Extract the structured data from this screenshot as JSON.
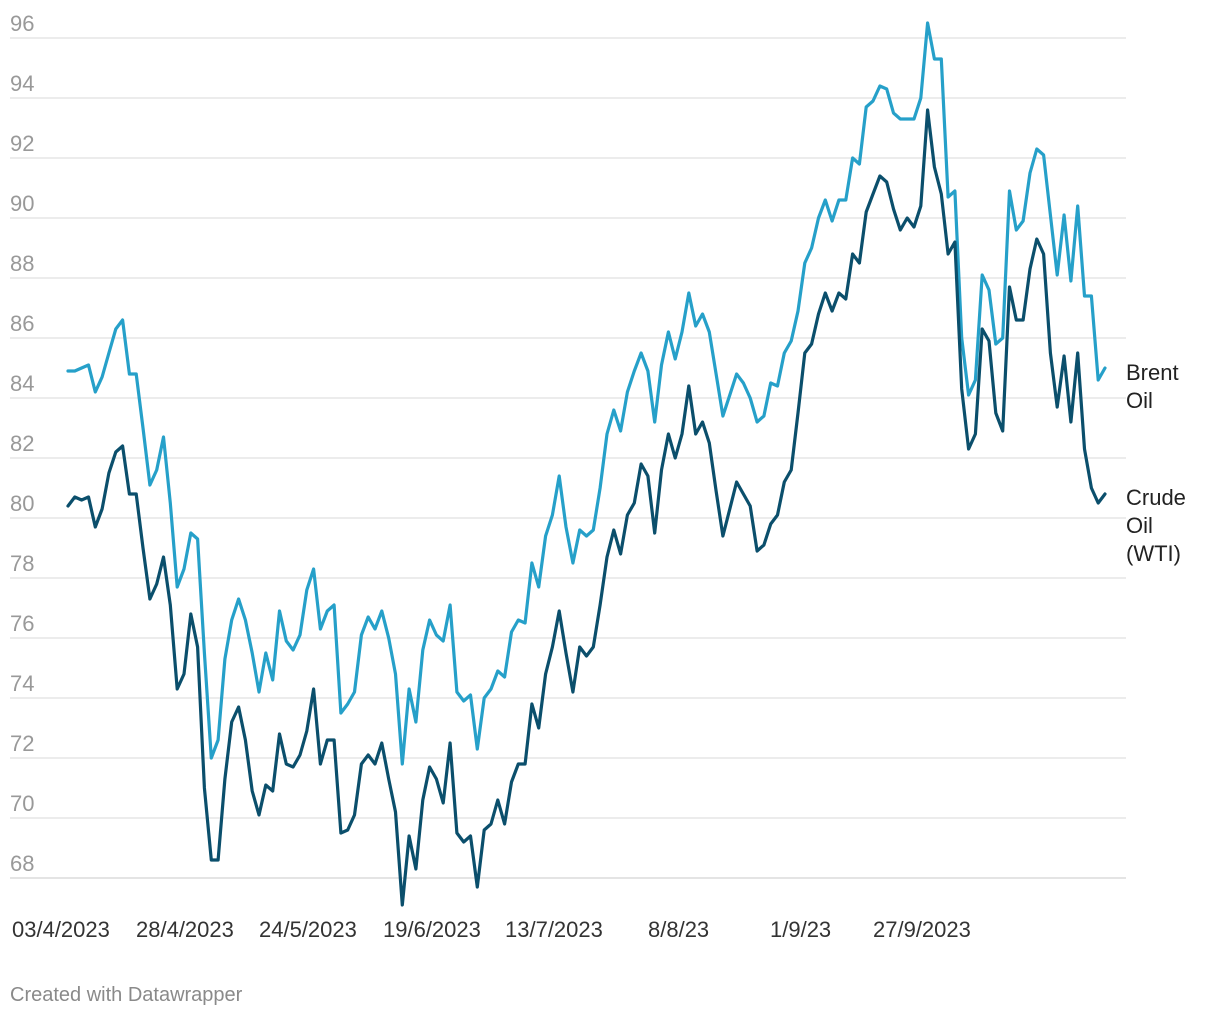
{
  "chart_data": {
    "type": "line",
    "x_tick_labels": [
      "03/4/2023",
      "28/4/2023",
      "24/5/2023",
      "19/6/2023",
      "13/7/2023",
      "8/8/23",
      "1/9/23",
      "27/9/2023"
    ],
    "ylim": [
      67,
      96.5
    ],
    "y_ticks": [
      68,
      70,
      72,
      74,
      76,
      78,
      80,
      82,
      84,
      86,
      88,
      90,
      92,
      94,
      96
    ],
    "grid": true,
    "series": [
      {
        "name": "Brent Oil",
        "label_lines": [
          "Brent",
          "Oil"
        ],
        "color": "#26a0c9",
        "values": [
          84.9,
          84.9,
          85.0,
          85.1,
          84.2,
          84.7,
          85.5,
          86.3,
          86.6,
          84.8,
          84.8,
          83.0,
          81.1,
          81.6,
          82.7,
          80.5,
          77.7,
          78.3,
          79.5,
          79.3,
          75.5,
          72.0,
          72.6,
          75.3,
          76.6,
          77.3,
          76.6,
          75.5,
          74.2,
          75.5,
          74.6,
          76.9,
          75.9,
          75.6,
          76.1,
          77.6,
          78.3,
          76.3,
          76.9,
          77.1,
          73.5,
          73.8,
          74.2,
          76.1,
          76.7,
          76.3,
          76.9,
          76.0,
          74.8,
          71.8,
          74.3,
          73.2,
          75.6,
          76.6,
          76.1,
          75.9,
          77.1,
          74.2,
          73.9,
          74.1,
          72.3,
          74.0,
          74.3,
          74.9,
          74.7,
          76.2,
          76.6,
          76.5,
          78.5,
          77.7,
          79.4,
          80.1,
          81.4,
          79.7,
          78.5,
          79.6,
          79.4,
          79.6,
          81.0,
          82.8,
          83.6,
          82.9,
          84.2,
          84.9,
          85.5,
          84.9,
          83.2,
          85.1,
          86.2,
          85.3,
          86.2,
          87.5,
          86.4,
          86.8,
          86.2,
          84.8,
          83.4,
          84.1,
          84.8,
          84.5,
          84.0,
          83.2,
          83.4,
          84.5,
          84.4,
          85.5,
          85.9,
          86.9,
          88.5,
          89.0,
          90.0,
          90.6,
          89.9,
          90.6,
          90.6,
          92.0,
          91.8,
          93.7,
          93.9,
          94.4,
          94.3,
          93.5,
          93.3,
          93.3,
          93.3,
          94.0,
          96.5,
          95.3,
          95.3,
          90.7,
          90.9,
          86.0,
          84.1,
          84.6,
          88.1,
          87.6,
          85.8,
          86.0,
          90.9,
          89.6,
          89.9,
          91.5,
          92.3,
          92.1,
          90.1,
          88.1,
          90.1,
          87.9,
          90.4,
          87.4,
          87.4,
          84.6,
          85.0
        ]
      },
      {
        "name": "Crude Oil (WTI)",
        "label_lines": [
          "Crude",
          "Oil",
          "(WTI)"
        ],
        "color": "#0b4f6c",
        "values": [
          80.4,
          80.7,
          80.6,
          80.7,
          79.7,
          80.3,
          81.5,
          82.2,
          82.4,
          80.8,
          80.8,
          79.0,
          77.3,
          77.8,
          78.7,
          77.1,
          74.3,
          74.8,
          76.8,
          75.7,
          71.0,
          68.6,
          68.6,
          71.3,
          73.2,
          73.7,
          72.6,
          70.9,
          70.1,
          71.1,
          70.9,
          72.8,
          71.8,
          71.7,
          72.1,
          72.9,
          74.3,
          71.8,
          72.6,
          72.6,
          69.5,
          69.6,
          70.1,
          71.8,
          72.1,
          71.8,
          72.5,
          71.3,
          70.2,
          67.1,
          69.4,
          68.3,
          70.6,
          71.7,
          71.3,
          70.5,
          72.5,
          69.5,
          69.2,
          69.4,
          67.7,
          69.6,
          69.8,
          70.6,
          69.8,
          71.2,
          71.8,
          71.8,
          73.8,
          73.0,
          74.8,
          75.7,
          76.9,
          75.5,
          74.2,
          75.7,
          75.4,
          75.7,
          77.1,
          78.7,
          79.6,
          78.8,
          80.1,
          80.5,
          81.8,
          81.4,
          79.5,
          81.6,
          82.8,
          82.0,
          82.8,
          84.4,
          82.8,
          83.2,
          82.5,
          80.9,
          79.4,
          80.3,
          81.2,
          80.8,
          80.4,
          78.9,
          79.1,
          79.8,
          80.1,
          81.2,
          81.6,
          83.5,
          85.5,
          85.8,
          86.8,
          87.5,
          86.9,
          87.5,
          87.3,
          88.8,
          88.5,
          90.2,
          90.8,
          91.4,
          91.2,
          90.3,
          89.6,
          90.0,
          89.7,
          90.4,
          93.6,
          91.7,
          90.8,
          88.8,
          89.2,
          84.3,
          82.3,
          82.8,
          86.3,
          85.9,
          83.5,
          82.9,
          87.7,
          86.6,
          86.6,
          88.3,
          89.3,
          88.8,
          85.5,
          83.7,
          85.4,
          83.2,
          85.5,
          82.3,
          81.0,
          80.5,
          80.8
        ]
      }
    ]
  },
  "footer": {
    "credit": "Created with Datawrapper"
  }
}
